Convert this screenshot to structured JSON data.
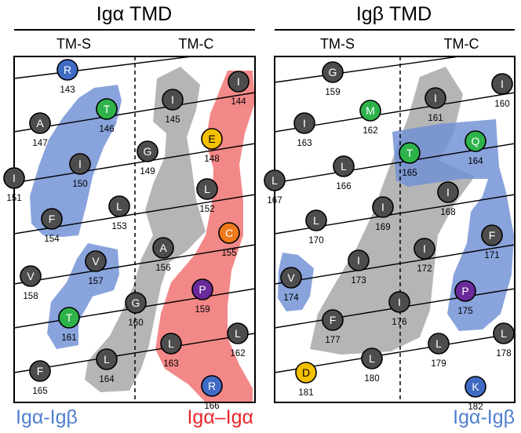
{
  "colors": {
    "grey": "#4d4d4d",
    "green": "#2db34a",
    "blue": "#3f6bc4",
    "purple": "#6a2a9a",
    "yellow": "#f5c000",
    "orange": "#ee7a1c",
    "region_blue": "#6f8fd4",
    "region_grey": "#a8a8a8",
    "region_red": "#ef5a5a",
    "legend_blue": "#4f7fcf",
    "legend_red": "#e8262a"
  },
  "panels": [
    {
      "id": "alpha",
      "title": "Igα TMD",
      "tm_s_label": "TM-S",
      "tm_c_label": "TM-C",
      "residues": [
        {
          "letter": "R",
          "number": "143",
          "color": "blue"
        },
        {
          "letter": "I",
          "number": "144",
          "color": "grey"
        },
        {
          "letter": "I",
          "number": "145",
          "color": "grey"
        },
        {
          "letter": "T",
          "number": "146",
          "color": "green"
        },
        {
          "letter": "A",
          "number": "147",
          "color": "grey"
        },
        {
          "letter": "E",
          "number": "148",
          "color": "yellow"
        },
        {
          "letter": "G",
          "number": "149",
          "color": "grey"
        },
        {
          "letter": "I",
          "number": "150",
          "color": "grey"
        },
        {
          "letter": "I",
          "number": "151",
          "color": "grey"
        },
        {
          "letter": "L",
          "number": "152",
          "color": "grey"
        },
        {
          "letter": "L",
          "number": "153",
          "color": "grey"
        },
        {
          "letter": "F",
          "number": "154",
          "color": "grey"
        },
        {
          "letter": "C",
          "number": "155",
          "color": "orange"
        },
        {
          "letter": "A",
          "number": "156",
          "color": "grey"
        },
        {
          "letter": "V",
          "number": "157",
          "color": "grey"
        },
        {
          "letter": "V",
          "number": "158",
          "color": "grey"
        },
        {
          "letter": "P",
          "number": "159",
          "color": "purple"
        },
        {
          "letter": "G",
          "number": "160",
          "color": "grey"
        },
        {
          "letter": "T",
          "number": "161",
          "color": "green"
        },
        {
          "letter": "L",
          "number": "162",
          "color": "grey"
        },
        {
          "letter": "L",
          "number": "163",
          "color": "grey"
        },
        {
          "letter": "L",
          "number": "164",
          "color": "grey"
        },
        {
          "letter": "F",
          "number": "165",
          "color": "grey"
        },
        {
          "letter": "R",
          "number": "166",
          "color": "blue"
        }
      ]
    },
    {
      "id": "beta",
      "title": "Igβ TMD",
      "tm_s_label": "TM-S",
      "tm_c_label": "TM-C",
      "residues": [
        {
          "letter": "G",
          "number": "159",
          "color": "grey"
        },
        {
          "letter": "I",
          "number": "160",
          "color": "grey"
        },
        {
          "letter": "I",
          "number": "161",
          "color": "grey"
        },
        {
          "letter": "M",
          "number": "162",
          "color": "green"
        },
        {
          "letter": "I",
          "number": "163",
          "color": "grey"
        },
        {
          "letter": "Q",
          "number": "164",
          "color": "green"
        },
        {
          "letter": "T",
          "number": "165",
          "color": "green"
        },
        {
          "letter": "L",
          "number": "166",
          "color": "grey"
        },
        {
          "letter": "L",
          "number": "167",
          "color": "grey"
        },
        {
          "letter": "I",
          "number": "168",
          "color": "grey"
        },
        {
          "letter": "I",
          "number": "169",
          "color": "grey"
        },
        {
          "letter": "L",
          "number": "170",
          "color": "grey"
        },
        {
          "letter": "F",
          "number": "171",
          "color": "grey"
        },
        {
          "letter": "I",
          "number": "172",
          "color": "grey"
        },
        {
          "letter": "I",
          "number": "173",
          "color": "grey"
        },
        {
          "letter": "V",
          "number": "174",
          "color": "grey"
        },
        {
          "letter": "P",
          "number": "175",
          "color": "purple"
        },
        {
          "letter": "I",
          "number": "176",
          "color": "grey"
        },
        {
          "letter": "F",
          "number": "177",
          "color": "grey"
        },
        {
          "letter": "L",
          "number": "178",
          "color": "grey"
        },
        {
          "letter": "L",
          "number": "179",
          "color": "grey"
        },
        {
          "letter": "L",
          "number": "180",
          "color": "grey"
        },
        {
          "letter": "D",
          "number": "181",
          "color": "yellow"
        },
        {
          "letter": "K",
          "number": "182",
          "color": "blue"
        }
      ]
    }
  ],
  "legend": {
    "alpha_left": "Igα-Igβ",
    "alpha_right": "Igα–Igα",
    "beta_right": "Igα-Igβ"
  }
}
